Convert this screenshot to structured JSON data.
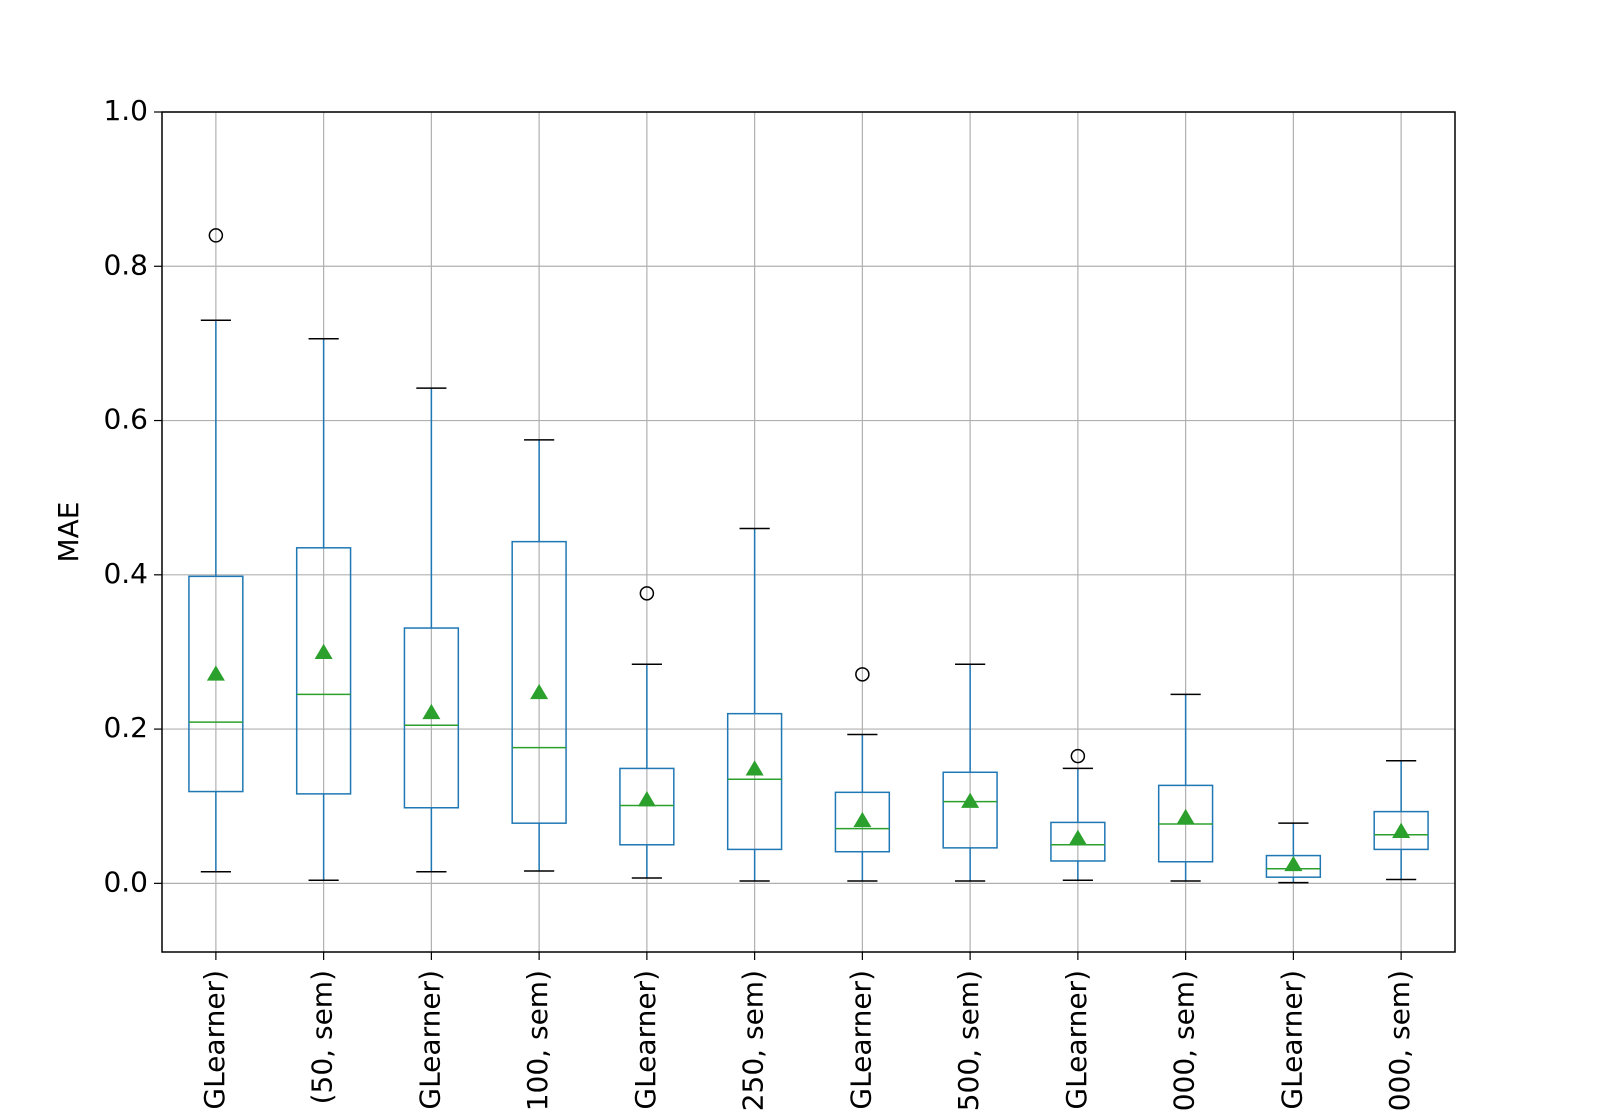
{
  "chart_data": {
    "type": "box",
    "y_label": "MAE",
    "categories": [
      "GLearner)",
      "(50, sem)",
      "GLearner)",
      "100, sem)",
      "GLearner)",
      "250, sem)",
      "GLearner)",
      "500, sem)",
      "GLearner)",
      "000, sem)",
      "GLearner)",
      "000, sem)"
    ],
    "boxes": [
      {
        "low": 0.015,
        "q1": 0.119,
        "median": 0.209,
        "q3": 0.398,
        "high": 0.73,
        "mean": 0.271,
        "outliers": [
          0.84
        ]
      },
      {
        "low": 0.004,
        "q1": 0.116,
        "median": 0.245,
        "q3": 0.435,
        "high": 0.706,
        "mean": 0.299,
        "outliers": []
      },
      {
        "low": 0.015,
        "q1": 0.098,
        "median": 0.205,
        "q3": 0.331,
        "high": 0.642,
        "mean": 0.221,
        "outliers": []
      },
      {
        "low": 0.016,
        "q1": 0.078,
        "median": 0.176,
        "q3": 0.443,
        "high": 0.575,
        "mean": 0.247,
        "outliers": []
      },
      {
        "low": 0.007,
        "q1": 0.05,
        "median": 0.101,
        "q3": 0.149,
        "high": 0.284,
        "mean": 0.108,
        "outliers": [
          0.376
        ]
      },
      {
        "low": 0.003,
        "q1": 0.044,
        "median": 0.135,
        "q3": 0.22,
        "high": 0.46,
        "mean": 0.148,
        "outliers": []
      },
      {
        "low": 0.003,
        "q1": 0.041,
        "median": 0.071,
        "q3": 0.118,
        "high": 0.193,
        "mean": 0.081,
        "outliers": [
          0.271
        ]
      },
      {
        "low": 0.003,
        "q1": 0.046,
        "median": 0.106,
        "q3": 0.144,
        "high": 0.284,
        "mean": 0.106,
        "outliers": []
      },
      {
        "low": 0.004,
        "q1": 0.029,
        "median": 0.05,
        "q3": 0.079,
        "high": 0.149,
        "mean": 0.058,
        "outliers": [
          0.165
        ]
      },
      {
        "low": 0.003,
        "q1": 0.028,
        "median": 0.077,
        "q3": 0.127,
        "high": 0.245,
        "mean": 0.085,
        "outliers": []
      },
      {
        "low": 0.001,
        "q1": 0.008,
        "median": 0.019,
        "q3": 0.036,
        "high": 0.078,
        "mean": 0.024,
        "outliers": []
      },
      {
        "low": 0.005,
        "q1": 0.044,
        "median": 0.063,
        "q3": 0.093,
        "high": 0.159,
        "mean": 0.067,
        "outliers": []
      }
    ],
    "box_color": "#1f77b4",
    "median_color": "#2ca02c",
    "mean_color": "#2ca02c",
    "ylim": [
      -0.089,
      1.0
    ],
    "yticks": [
      {
        "value": 0,
        "label": "0.0"
      },
      0.2,
      0.4,
      0.6,
      0.8,
      {
        "value": 1,
        "label": "1.0"
      }
    ],
    "grid": true
  }
}
